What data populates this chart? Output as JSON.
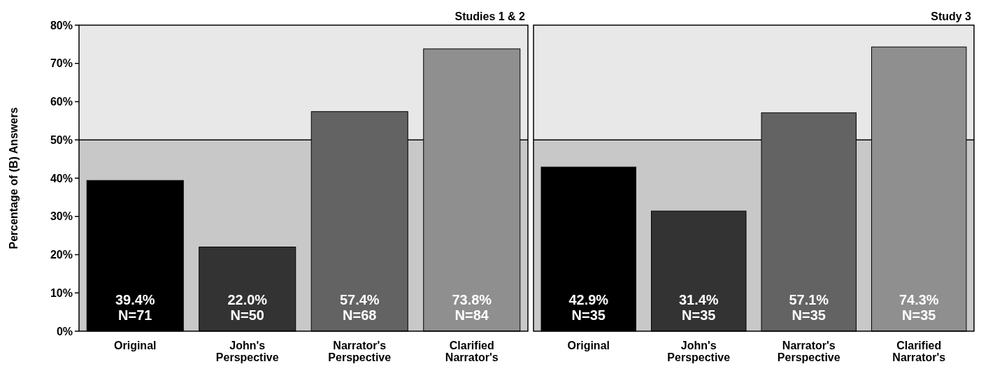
{
  "chart_data": [
    {
      "type": "bar",
      "title": "Studies 1 & 2",
      "ylabel": "Percentage of (B) Answers",
      "categories": [
        "Original",
        "John's Perspective",
        "Narrator's Perspective",
        "Clarified Narrator's"
      ],
      "values": [
        39.4,
        22.0,
        57.4,
        73.8
      ],
      "colors": [
        "#000000",
        "#333333",
        "#636363",
        "#8f8f8f"
      ],
      "value_labels": [
        "39.4%\nN=71",
        "22.0%\nN=50",
        "57.4%\nN=68",
        "73.8%\nN=84"
      ],
      "ylim": [
        0,
        80
      ],
      "yticks": [
        {
          "value": 0,
          "label": "0%"
        },
        {
          "value": 10,
          "label": "10%"
        },
        {
          "value": 20,
          "label": "20%"
        },
        {
          "value": 30,
          "label": "30%"
        },
        {
          "value": 40,
          "label": "40%"
        },
        {
          "value": 50,
          "label": "50%"
        },
        {
          "value": 60,
          "label": "60%"
        },
        {
          "value": 70,
          "label": "70%"
        },
        {
          "value": 80,
          "label": "80%"
        }
      ],
      "bands": [
        {
          "axis": "y",
          "from": 0,
          "to": 50,
          "color": "#c8c8c8"
        },
        {
          "axis": "y",
          "from": 50,
          "to": 80,
          "color": "#e8e8e8"
        }
      ],
      "ref_lines": [
        {
          "axis": "y",
          "value": 50,
          "color": "#000000"
        }
      ]
    },
    {
      "type": "bar",
      "title": "Study 3",
      "categories": [
        "Original",
        "John's Perspective",
        "Narrator's Perspective",
        "Clarified Narrator's"
      ],
      "values": [
        42.9,
        31.4,
        57.1,
        74.3
      ],
      "colors": [
        "#000000",
        "#333333",
        "#636363",
        "#8f8f8f"
      ],
      "value_labels": [
        "42.9%\nN=35",
        "31.4%\nN=35",
        "57.1%\nN=35",
        "74.3%\nN=35"
      ],
      "ylim": [
        0,
        80
      ],
      "bands": [
        {
          "axis": "y",
          "from": 0,
          "to": 50,
          "color": "#c8c8c8"
        },
        {
          "axis": "y",
          "from": 50,
          "to": 80,
          "color": "#e8e8e8"
        }
      ],
      "ref_lines": [
        {
          "axis": "y",
          "value": 50,
          "color": "#000000"
        }
      ]
    }
  ]
}
